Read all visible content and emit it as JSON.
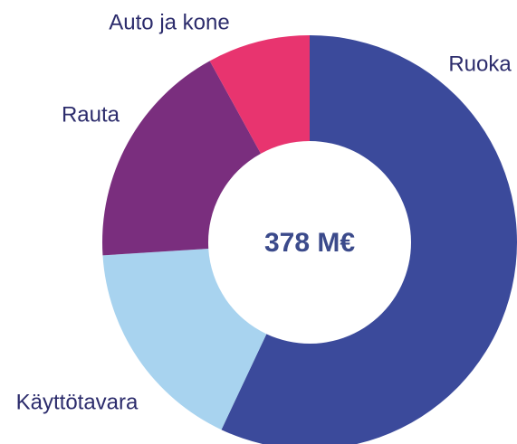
{
  "chart_data": {
    "type": "donut",
    "center_label": "378 M€",
    "categories": [
      "Ruoka",
      "Käyttötavara",
      "Rauta",
      "Auto ja kone"
    ],
    "values": [
      57,
      17,
      18,
      8
    ],
    "colors": [
      "#3b4a9b",
      "#a8d3ef",
      "#7a2e7e",
      "#e8346f"
    ]
  }
}
